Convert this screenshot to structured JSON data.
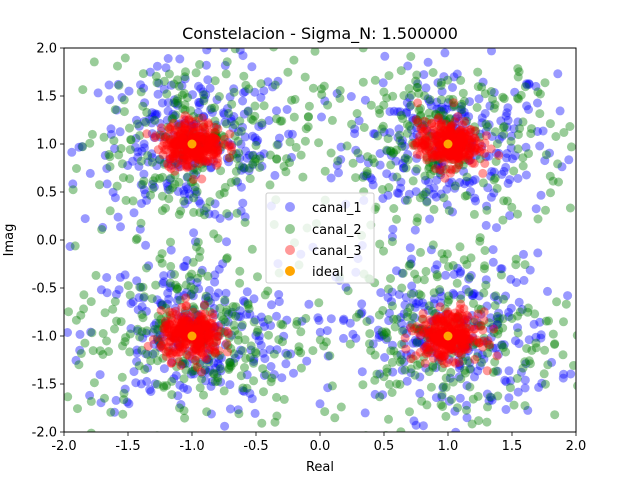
{
  "chart_data": {
    "type": "scatter",
    "title": "Constelacion - Sigma_N: 1.500000",
    "xlabel": "Real",
    "ylabel": "Imag",
    "xlim": [
      -2.0,
      2.0
    ],
    "ylim": [
      -2.0,
      2.0
    ],
    "xticks": [
      "-2.0",
      "-1.5",
      "-1.0",
      "-0.5",
      "0.0",
      "0.5",
      "1.0",
      "1.5",
      "2.0"
    ],
    "yticks": [
      "-2.0",
      "-1.5",
      "-1.0",
      "-0.5",
      "0.0",
      "0.5",
      "1.0",
      "1.5",
      "2.0"
    ],
    "xtick_values": [
      -2.0,
      -1.5,
      -1.0,
      -0.5,
      0.0,
      0.5,
      1.0,
      1.5,
      2.0
    ],
    "ytick_values": [
      -2.0,
      -1.5,
      -1.0,
      -0.5,
      0.0,
      0.5,
      1.0,
      1.5,
      2.0
    ],
    "grid": false,
    "legend_position": "center",
    "series": [
      {
        "name": "canal_1",
        "color": "#0000ff",
        "opacity": 0.4,
        "centers": [
          [
            1,
            1
          ],
          [
            -1,
            1
          ],
          [
            -1,
            -1
          ],
          [
            1,
            -1
          ]
        ],
        "spread": 0.42
      },
      {
        "name": "canal_2",
        "color": "#008000",
        "opacity": 0.4,
        "centers": [
          [
            1,
            1
          ],
          [
            -1,
            1
          ],
          [
            -1,
            -1
          ],
          [
            1,
            -1
          ]
        ],
        "spread": 0.48
      },
      {
        "name": "canal_3",
        "color": "#ff0000",
        "opacity": 0.4,
        "centers": [
          [
            1,
            1
          ],
          [
            -1,
            1
          ],
          [
            -1,
            -1
          ],
          [
            1,
            -1
          ]
        ],
        "spread": 0.12
      },
      {
        "name": "ideal",
        "color": "#ffa500",
        "opacity": 1.0,
        "points": [
          [
            1,
            1
          ],
          [
            -1,
            1
          ],
          [
            -1,
            -1
          ],
          [
            1,
            -1
          ]
        ]
      }
    ]
  }
}
